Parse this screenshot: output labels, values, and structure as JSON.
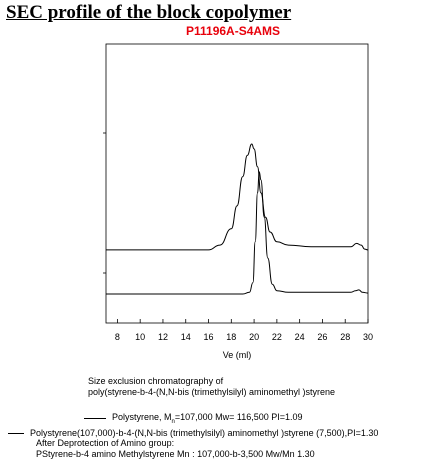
{
  "title": "SEC profile of the block copolymer",
  "subtitle": "P11196A-S4AMS",
  "caption": {
    "line1": "Size exclusion chromatography of",
    "line2": "poly(styrene-b-4-(N,N-bis (trimethylsilyl) aminomethyl )styrene"
  },
  "legend": [
    {
      "label_pre": "Polystyrene, M",
      "label_sub": "n",
      "label_post": "=107,000 Mw= 116,500  PI=1.09"
    },
    {
      "label": "Polystyrene(107,000)-b-4-(N,N-bis (trimethylsilyl) aminomethyl )styrene (7,500),PI=1.30"
    }
  ],
  "notes": {
    "line1": "After Deprotection of Amino group:",
    "line2": "PStyrene-b-4 amino  Methylstyrene Mn : 107,000-b-3,500 Mw/Mn 1.30"
  },
  "chart_data": {
    "type": "line",
    "xlabel": "Ve (ml)",
    "xlim": [
      7,
      30
    ],
    "xticks": [
      8,
      10,
      12,
      14,
      16,
      18,
      20,
      22,
      24,
      26,
      28,
      30
    ],
    "series": [
      {
        "name": "Polystyrene, Mn=107,000 Mw= 116,500  PI=1.09",
        "x": [
          7,
          16,
          17,
          18,
          18.5,
          19,
          19.4,
          19.8,
          20.0,
          20.3,
          20.6,
          21.0,
          21.4,
          22,
          23,
          25,
          28.5,
          29,
          29.4,
          29.7,
          30
        ],
        "y": [
          0.35,
          0.35,
          0.38,
          0.48,
          0.62,
          0.8,
          0.93,
          1.0,
          0.97,
          0.86,
          0.7,
          0.55,
          0.46,
          0.4,
          0.38,
          0.37,
          0.37,
          0.39,
          0.38,
          0.355,
          0.35
        ]
      },
      {
        "name": "Polystyrene(107,000)-b-4-(N,N-bis (trimethylsilyl) aminomethyl )styrene (7,500),PI=1.30",
        "x": [
          7,
          17,
          19.0,
          19.6,
          19.9,
          20.1,
          20.3,
          20.45,
          20.6,
          20.9,
          21.2,
          21.6,
          22,
          23,
          27,
          28.5,
          28.9,
          29.2,
          29.5,
          30
        ],
        "y": [
          0.08,
          0.08,
          0.08,
          0.09,
          0.15,
          0.4,
          0.7,
          0.83,
          0.78,
          0.55,
          0.3,
          0.14,
          0.1,
          0.09,
          0.09,
          0.09,
          0.1,
          0.105,
          0.09,
          0.085
        ]
      }
    ]
  }
}
